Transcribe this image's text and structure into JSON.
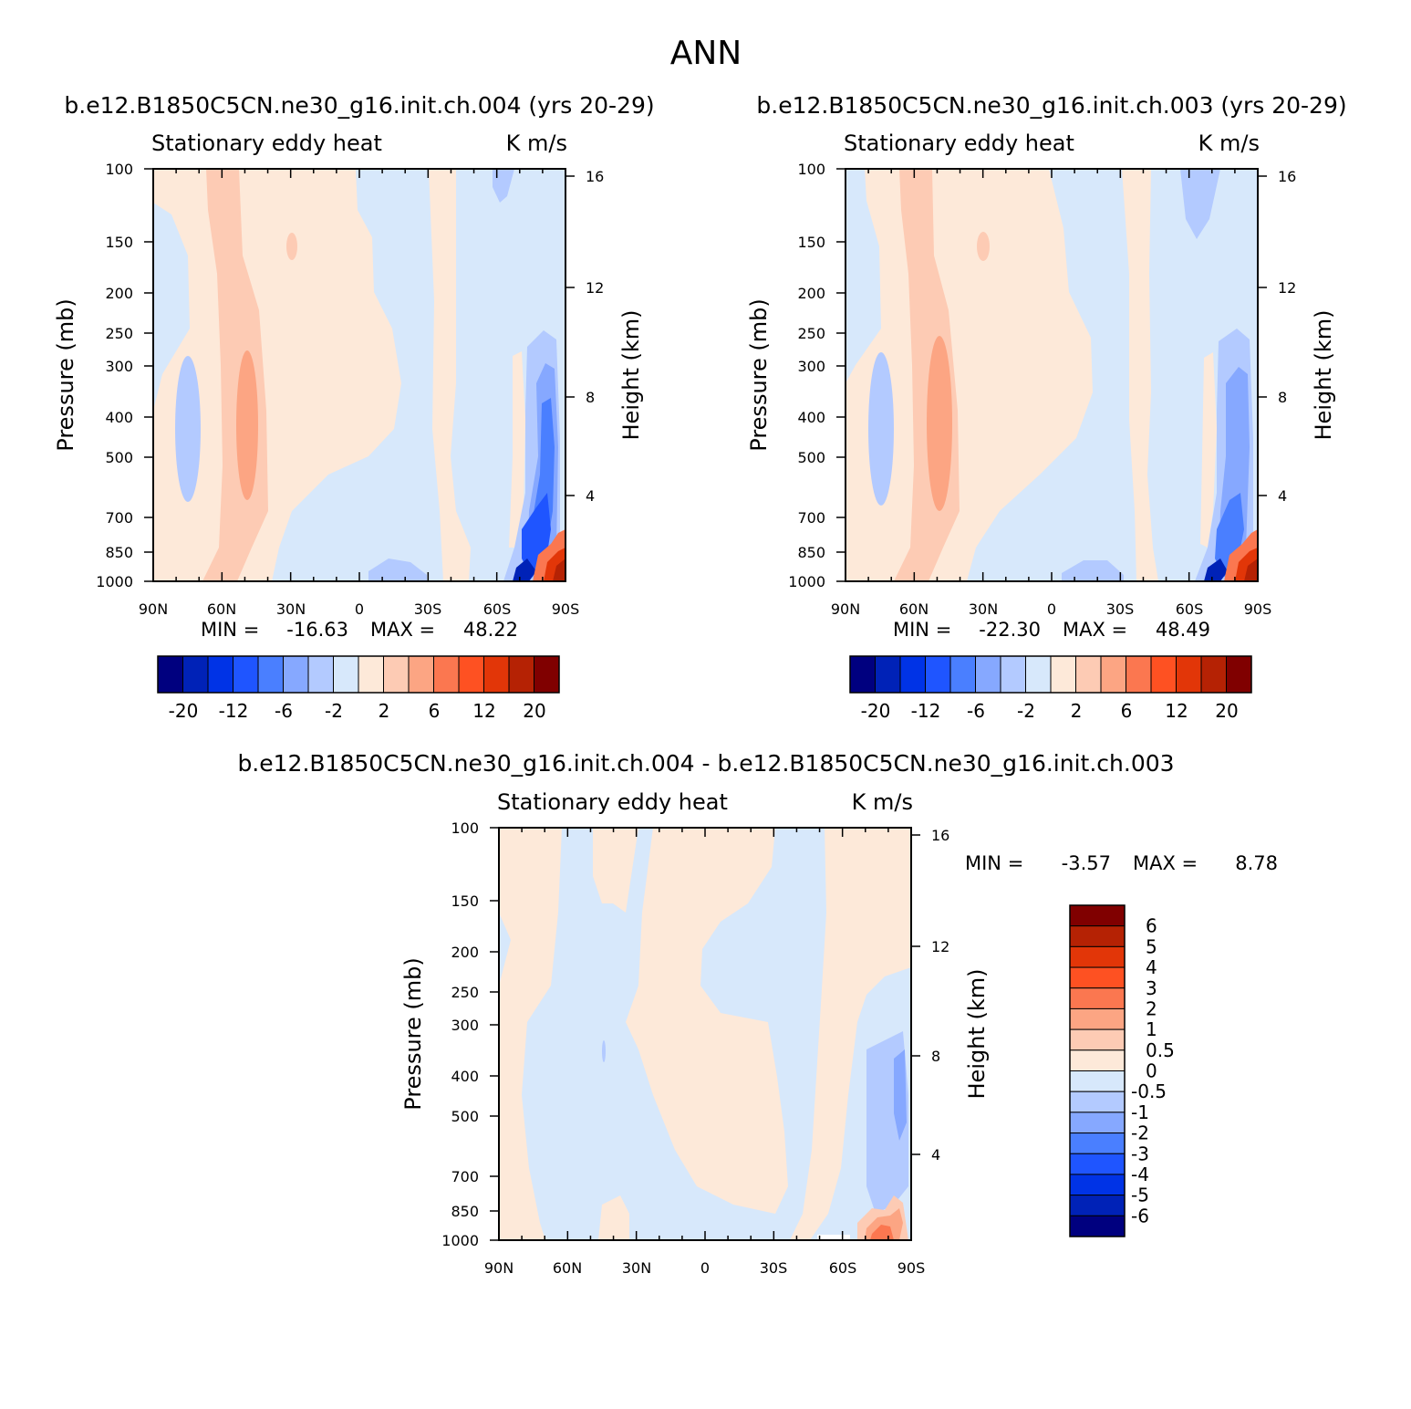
{
  "main_title": "ANN",
  "chart_data": [
    {
      "type": "heatmap",
      "title": "b.e12.B1850C5CN.ne30_g16.init.ch.004 (yrs 20-29)",
      "left_string": "Stationary eddy heat",
      "right_string": "K m/s",
      "ylabel": "Pressure (mb)",
      "y2label": "Height (km)",
      "x_ticks": [
        "90N",
        "60N",
        "30N",
        "0",
        "30S",
        "60S",
        "90S"
      ],
      "y_ticks": [
        "100",
        "150",
        "200",
        "250",
        "300",
        "400",
        "500",
        "700",
        "850",
        "1000"
      ],
      "y2_ticks": [
        "16",
        "12",
        "8",
        "4"
      ],
      "ylim": [
        1000,
        100
      ],
      "min_label": "MIN =",
      "min_value": "-16.63",
      "max_label": "MAX =",
      "max_value": "48.22",
      "colorbar_labels": [
        "-20",
        "-12",
        "-6",
        "-2",
        "2",
        "6",
        "12",
        "20"
      ]
    },
    {
      "type": "heatmap",
      "title": "b.e12.B1850C5CN.ne30_g16.init.ch.003 (yrs 20-29)",
      "left_string": "Stationary eddy heat",
      "right_string": "K m/s",
      "ylabel": "Pressure (mb)",
      "y2label": "Height (km)",
      "x_ticks": [
        "90N",
        "60N",
        "30N",
        "0",
        "30S",
        "60S",
        "90S"
      ],
      "y_ticks": [
        "100",
        "150",
        "200",
        "250",
        "300",
        "400",
        "500",
        "700",
        "850",
        "1000"
      ],
      "y2_ticks": [
        "16",
        "12",
        "8",
        "4"
      ],
      "ylim": [
        1000,
        100
      ],
      "min_label": "MIN =",
      "min_value": "-22.30",
      "max_label": "MAX =",
      "max_value": "48.49",
      "colorbar_labels": [
        "-20",
        "-12",
        "-6",
        "-2",
        "2",
        "6",
        "12",
        "20"
      ]
    },
    {
      "type": "heatmap",
      "title": "b.e12.B1850C5CN.ne30_g16.init.ch.004 - b.e12.B1850C5CN.ne30_g16.init.ch.003",
      "left_string": "Stationary eddy heat",
      "right_string": "K m/s",
      "ylabel": "Pressure (mb)",
      "y2label": "Height (km)",
      "x_ticks": [
        "90N",
        "60N",
        "30N",
        "0",
        "30S",
        "60S",
        "90S"
      ],
      "y_ticks": [
        "100",
        "150",
        "200",
        "250",
        "300",
        "400",
        "500",
        "700",
        "850",
        "1000"
      ],
      "y2_ticks": [
        "16",
        "12",
        "8",
        "4"
      ],
      "ylim": [
        1000,
        100
      ],
      "min_label": "MIN =",
      "min_value": "-3.57",
      "max_label": "MAX =",
      "max_value": "8.78",
      "colorbar_labels": [
        "6",
        "5",
        "4",
        "3",
        "2",
        "1",
        "0.5",
        "0",
        "-0.5",
        "-1",
        "-2",
        "-3",
        "-4",
        "-5",
        "-6"
      ]
    }
  ],
  "colors": {
    "palette_16": [
      "#00007f",
      "#0022b7",
      "#0033e6",
      "#1f55ff",
      "#4a7fff",
      "#86a8ff",
      "#b3caff",
      "#d7e8fb",
      "#fde9d9",
      "#fdcbb4",
      "#fca583",
      "#fb7750",
      "#fe5122",
      "#e23608",
      "#b52204",
      "#800000"
    ],
    "near_zero_pos": "#fde9d9",
    "near_zero_neg": "#d7e8fb"
  }
}
